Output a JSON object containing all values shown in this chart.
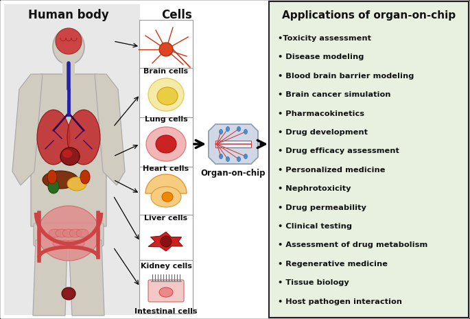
{
  "human_body_label": "Human body",
  "cells_label": "Cells",
  "cell_types": [
    "Brain cells",
    "Lung cells",
    "Heart cells",
    "Liver cells",
    "Kidney cells",
    "Intestinal cells"
  ],
  "organ_on_chip_label": "Organ-on-chip",
  "app_title_bold": "Applications ",
  "app_title_normal": "of organ-on-chip",
  "applications": [
    "•Toxicity assessment",
    "• Disease modeling",
    "• Blood brain barrier modeling",
    "• Brain cancer simulation",
    "• Pharmacokinetics",
    "• Drug development",
    "• Drug efficacy assessment",
    "• Personalized medicine",
    "• Nephrotoxicity",
    "• Drug permeability",
    "• Clinical testing",
    "• Assessment of drug metabolism",
    "• Regenerative medicine",
    "• Tissue biology",
    "• Host pathogen interaction"
  ],
  "human_body_bg": "#e8e8e8",
  "app_box_color": "#e8f0e0",
  "border_color": "#222222",
  "text_color": "#111111",
  "body_skin": "#d0ccc0",
  "body_outline": "#aaaaaa",
  "cell_box_bg": [
    "#ffffff",
    "#ffffff",
    "#ffffff",
    "#ffffff",
    "#ffffff",
    "#ffffff"
  ],
  "figsize": [
    6.85,
    4.65
  ],
  "dpi": 100
}
